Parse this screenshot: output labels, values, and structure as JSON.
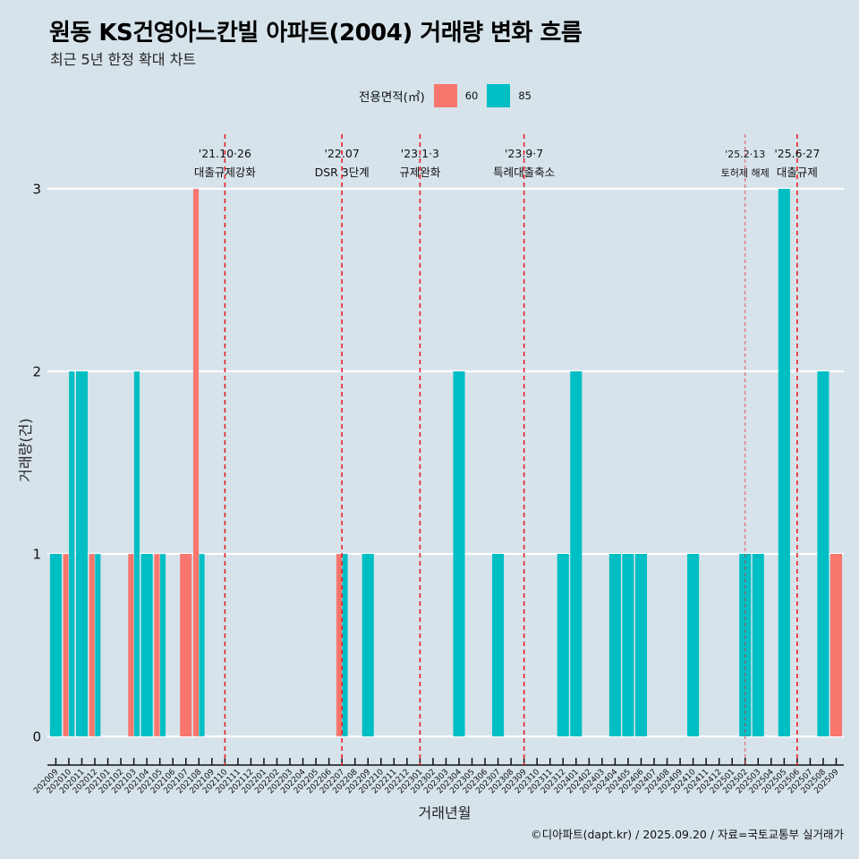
{
  "chart_data": {
    "type": "bar",
    "title": "원동 KS건영아느칸빌 아파트(2004) 거래량 변화 흐름",
    "subtitle": "최근 5년 한정 확대 차트",
    "xlabel": "거래년월",
    "ylabel": "거래량(건)",
    "ylim": [
      0,
      3
    ],
    "yticks": [
      0,
      1,
      2,
      3
    ],
    "grid": true,
    "legend": {
      "title": "전용면적(㎡)",
      "placement": "top-center",
      "entries": [
        "60",
        "85"
      ]
    },
    "categories": [
      "202009",
      "202010",
      "202011",
      "202012",
      "202101",
      "202102",
      "202103",
      "202104",
      "202105",
      "202106",
      "202107",
      "202108",
      "202109",
      "202110",
      "202111",
      "202112",
      "202201",
      "202202",
      "202203",
      "202204",
      "202205",
      "202206",
      "202207",
      "202208",
      "202209",
      "202210",
      "202211",
      "202212",
      "202301",
      "202302",
      "202303",
      "202304",
      "202305",
      "202306",
      "202307",
      "202308",
      "202309",
      "202310",
      "202311",
      "202312",
      "202401",
      "202402",
      "202403",
      "202404",
      "202405",
      "202406",
      "202407",
      "202408",
      "202409",
      "202410",
      "202411",
      "202412",
      "202501",
      "202502",
      "202503",
      "202504",
      "202505",
      "202506",
      "202507",
      "202508",
      "202509"
    ],
    "series": [
      {
        "name": "60",
        "color": "#F8766D",
        "values": [
          0,
          1,
          0,
          1,
          0,
          0,
          1,
          0,
          1,
          0,
          1,
          3,
          0,
          0,
          0,
          0,
          0,
          0,
          0,
          0,
          0,
          0,
          1,
          0,
          0,
          0,
          0,
          0,
          0,
          0,
          0,
          0,
          0,
          0,
          0,
          0,
          0,
          0,
          0,
          0,
          0,
          0,
          0,
          0,
          0,
          0,
          0,
          0,
          0,
          0,
          0,
          0,
          0,
          0,
          0,
          0,
          0,
          0,
          0,
          0,
          1
        ]
      },
      {
        "name": "85",
        "color": "#00BFC4",
        "values": [
          1,
          2,
          2,
          1,
          0,
          0,
          2,
          1,
          1,
          0,
          0,
          1,
          0,
          0,
          0,
          0,
          0,
          0,
          0,
          0,
          0,
          0,
          1,
          0,
          1,
          0,
          0,
          0,
          0,
          0,
          0,
          2,
          0,
          0,
          1,
          0,
          0,
          0,
          0,
          1,
          2,
          0,
          0,
          1,
          1,
          1,
          0,
          0,
          0,
          1,
          0,
          0,
          0,
          1,
          1,
          0,
          3,
          0,
          0,
          2,
          0
        ]
      }
    ],
    "annotations": [
      {
        "month": "202110",
        "date": "'21.10·26",
        "label": "대출규제강화",
        "style": "major"
      },
      {
        "month": "202207",
        "date": "'22.07",
        "label": "DSR 3단계",
        "style": "major"
      },
      {
        "month": "202301",
        "date": "'23.1·3",
        "label": "규제완화",
        "style": "major"
      },
      {
        "month": "202309",
        "date": "'23.9·7",
        "label": "특례대출축소",
        "style": "major"
      },
      {
        "month": "202502",
        "date": "'25.2·13",
        "label": "토허제 해제",
        "style": "minor"
      },
      {
        "month": "202506",
        "date": "'25.6·27",
        "label": "대출규제",
        "style": "major"
      }
    ],
    "annotation_color": "#e8202a",
    "caption": "©디아파트(dapt.kr) / 2025.09.20 / 자료=국토교통부 실거래가"
  }
}
